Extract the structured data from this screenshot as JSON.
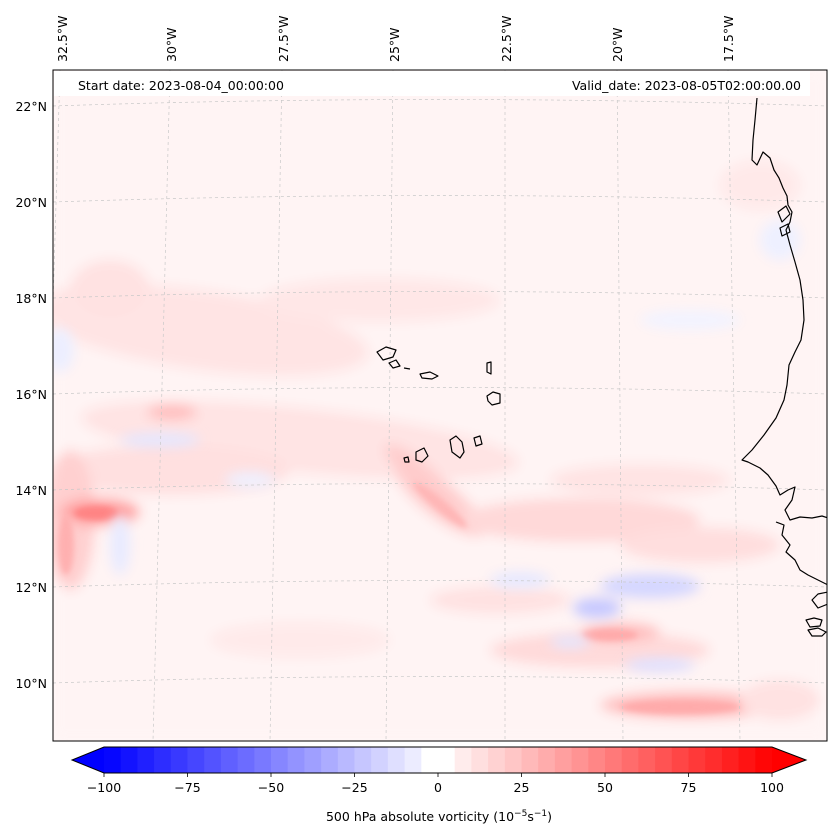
{
  "header": {
    "start_date": "Start date: 2023-08-04_00:00:00",
    "valid_date": "Valid_date: 2023-08-05T02:00:00.00"
  },
  "map": {
    "lon_labels": [
      "32.5°W",
      "30°W",
      "27.5°W",
      "25°W",
      "22.5°W",
      "20°W",
      "17.5°W"
    ],
    "lat_labels": [
      "22°N",
      "20°N",
      "18°N",
      "16°N",
      "14°N",
      "12°N",
      "10°N"
    ],
    "colors": {
      "positive": "#ff0000",
      "negative": "#0000ff",
      "zero": "#ffffff",
      "coast": "#000000",
      "grid": "#bbbbbb"
    }
  },
  "colorbar": {
    "ticks": [
      "−100",
      "−75",
      "−50",
      "−25",
      "0",
      "25",
      "50",
      "75",
      "100"
    ],
    "range": [
      -100,
      100
    ],
    "label_text": "500 hPa absolute vorticity (10",
    "label_exp1": "−5",
    "label_mid": "s",
    "label_exp2": "−1",
    "label_close": ")"
  }
}
